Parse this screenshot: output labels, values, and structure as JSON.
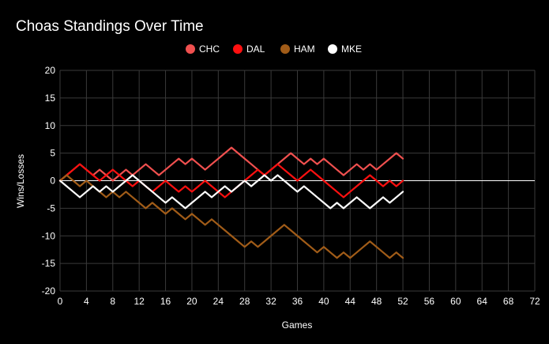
{
  "chart_data": {
    "type": "line",
    "title": "Choas Standings Over Time",
    "xlabel": "Games",
    "ylabel": "Wins/Losses",
    "xlim": [
      0,
      72
    ],
    "ylim": [
      -20,
      20
    ],
    "xticks": [
      0,
      4,
      8,
      12,
      16,
      20,
      24,
      28,
      32,
      36,
      40,
      44,
      48,
      52,
      56,
      60,
      64,
      68,
      72
    ],
    "yticks": [
      20,
      15,
      10,
      5,
      0,
      -5,
      -10,
      -15,
      -20
    ],
    "legend_position": "top-center",
    "grid": true,
    "series": [
      {
        "name": "CHC",
        "color": "#f0504f",
        "values": [
          0,
          1,
          2,
          3,
          2,
          1,
          2,
          1,
          0,
          1,
          2,
          1,
          2,
          3,
          2,
          1,
          2,
          3,
          4,
          3,
          4,
          3,
          2,
          3,
          4,
          5,
          6,
          5,
          4,
          3,
          2,
          1,
          2,
          3,
          4,
          5,
          4,
          3,
          4,
          3,
          4,
          3,
          2,
          1,
          2,
          3,
          2,
          3,
          2,
          3,
          4,
          5,
          4
        ]
      },
      {
        "name": "DAL",
        "color": "#ff1010",
        "values": [
          0,
          1,
          2,
          3,
          2,
          1,
          0,
          1,
          2,
          1,
          0,
          -1,
          0,
          -1,
          -2,
          -1,
          0,
          -1,
          -2,
          -1,
          -2,
          -1,
          0,
          -1,
          -2,
          -3,
          -2,
          -1,
          0,
          1,
          2,
          1,
          2,
          3,
          2,
          1,
          0,
          1,
          2,
          1,
          0,
          -1,
          -2,
          -3,
          -2,
          -1,
          0,
          1,
          0,
          -1,
          0,
          -1,
          0
        ]
      },
      {
        "name": "HAM",
        "color": "#a15c18",
        "values": [
          0,
          1,
          0,
          -1,
          0,
          -1,
          -2,
          -3,
          -2,
          -3,
          -2,
          -3,
          -4,
          -5,
          -4,
          -5,
          -6,
          -5,
          -6,
          -7,
          -6,
          -7,
          -8,
          -7,
          -8,
          -9,
          -10,
          -11,
          -12,
          -11,
          -12,
          -11,
          -10,
          -9,
          -8,
          -9,
          -10,
          -11,
          -12,
          -13,
          -12,
          -13,
          -14,
          -13,
          -14,
          -13,
          -12,
          -11,
          -12,
          -13,
          -14,
          -13,
          -14
        ]
      },
      {
        "name": "MKE",
        "color": "#ffffff",
        "values": [
          0,
          -1,
          -2,
          -3,
          -2,
          -1,
          -2,
          -1,
          -2,
          -1,
          0,
          1,
          0,
          -1,
          -2,
          -3,
          -4,
          -3,
          -4,
          -5,
          -4,
          -3,
          -2,
          -3,
          -2,
          -1,
          -2,
          -1,
          0,
          -1,
          0,
          1,
          0,
          1,
          0,
          -1,
          -2,
          -1,
          -2,
          -3,
          -4,
          -5,
          -4,
          -5,
          -4,
          -3,
          -4,
          -5,
          -4,
          -3,
          -4,
          -3,
          -2
        ]
      }
    ]
  }
}
